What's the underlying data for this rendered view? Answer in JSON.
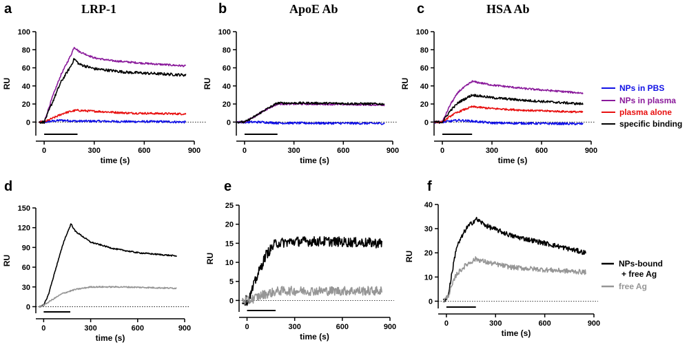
{
  "chart_data": [
    {
      "id": "a",
      "letter": "a",
      "title": "LRP-1",
      "type": "line",
      "xlabel": "time (s)",
      "ylabel": "RU",
      "xlim": [
        -50,
        900
      ],
      "ylim": [
        -15,
        100
      ],
      "xticks": [
        0,
        300,
        600,
        900
      ],
      "yticks": [
        0,
        20,
        40,
        60,
        80,
        100
      ],
      "injection": [
        0,
        200
      ],
      "series": [
        {
          "name": "NPs in PBS",
          "color": "#1010e6",
          "noise": 1.2,
          "points": [
            [
              -30,
              0
            ],
            [
              0,
              0
            ],
            [
              50,
              1
            ],
            [
              100,
              2
            ],
            [
              200,
              1
            ],
            [
              300,
              1
            ],
            [
              500,
              0.5
            ],
            [
              700,
              0.5
            ],
            [
              850,
              0
            ]
          ]
        },
        {
          "name": "NPs in plasma",
          "color": "#8a1a9b",
          "noise": 1.0,
          "points": [
            [
              -30,
              0
            ],
            [
              0,
              0
            ],
            [
              50,
              28
            ],
            [
              100,
              52
            ],
            [
              160,
              74
            ],
            [
              180,
              83
            ],
            [
              210,
              78
            ],
            [
              300,
              71
            ],
            [
              400,
              68
            ],
            [
              600,
              65
            ],
            [
              850,
              62
            ]
          ]
        },
        {
          "name": "plasma alone",
          "color": "#e81010",
          "noise": 1.1,
          "points": [
            [
              -30,
              0
            ],
            [
              0,
              0
            ],
            [
              60,
              5
            ],
            [
              120,
              10
            ],
            [
              190,
              13
            ],
            [
              300,
              12
            ],
            [
              500,
              10
            ],
            [
              850,
              9
            ]
          ]
        },
        {
          "name": "specific binding",
          "color": "#000000",
          "noise": 1.5,
          "points": [
            [
              -30,
              0
            ],
            [
              0,
              0
            ],
            [
              50,
              22
            ],
            [
              100,
              44
            ],
            [
              160,
              62
            ],
            [
              180,
              70
            ],
            [
              210,
              64
            ],
            [
              300,
              59
            ],
            [
              500,
              55
            ],
            [
              850,
              52
            ]
          ]
        }
      ]
    },
    {
      "id": "b",
      "letter": "b",
      "title": "ApoE Ab",
      "type": "line",
      "xlabel": "time (s)",
      "ylabel": "RU",
      "xlim": [
        -50,
        900
      ],
      "ylim": [
        -15,
        100
      ],
      "xticks": [
        0,
        300,
        600,
        900
      ],
      "yticks": [
        0,
        20,
        40,
        60,
        80,
        100
      ],
      "injection": [
        0,
        200
      ],
      "series": [
        {
          "name": "NPs in PBS",
          "color": "#1010e6",
          "noise": 1.2,
          "points": [
            [
              -50,
              0
            ],
            [
              0,
              0
            ],
            [
              100,
              0
            ],
            [
              200,
              -1
            ],
            [
              850,
              -1.5
            ]
          ]
        },
        {
          "name": "NPs in plasma",
          "color": "#8a1a9b",
          "noise": 1.0,
          "points": [
            [
              -50,
              0
            ],
            [
              0,
              0
            ],
            [
              60,
              6
            ],
            [
              120,
              13
            ],
            [
              200,
              20
            ],
            [
              400,
              20
            ],
            [
              850,
              19
            ]
          ]
        },
        {
          "name": "specific binding",
          "color": "#000000",
          "noise": 1.2,
          "points": [
            [
              -50,
              0
            ],
            [
              0,
              0
            ],
            [
              60,
              6
            ],
            [
              120,
              13
            ],
            [
              200,
              21
            ],
            [
              400,
              21
            ],
            [
              850,
              20
            ]
          ]
        }
      ]
    },
    {
      "id": "c",
      "letter": "c",
      "title": "HSA Ab",
      "type": "line",
      "xlabel": "time (s)",
      "ylabel": "RU",
      "xlim": [
        -50,
        900
      ],
      "ylim": [
        -15,
        100
      ],
      "xticks": [
        0,
        300,
        600,
        900
      ],
      "yticks": [
        0,
        20,
        40,
        60,
        80,
        100
      ],
      "injection": [
        0,
        180
      ],
      "series": [
        {
          "name": "NPs in PBS",
          "color": "#1010e6",
          "noise": 1.2,
          "points": [
            [
              -50,
              0
            ],
            [
              0,
              0
            ],
            [
              100,
              2
            ],
            [
              180,
              1
            ],
            [
              300,
              -1
            ],
            [
              850,
              -2
            ]
          ]
        },
        {
          "name": "NPs in plasma",
          "color": "#8a1a9b",
          "noise": 1.0,
          "points": [
            [
              -50,
              0
            ],
            [
              0,
              0
            ],
            [
              50,
              20
            ],
            [
              100,
              34
            ],
            [
              180,
              45
            ],
            [
              300,
              41
            ],
            [
              500,
              37
            ],
            [
              850,
              32
            ]
          ]
        },
        {
          "name": "plasma alone",
          "color": "#e81010",
          "noise": 1.0,
          "points": [
            [
              -50,
              0
            ],
            [
              0,
              0
            ],
            [
              60,
              8
            ],
            [
              120,
              13
            ],
            [
              180,
              17
            ],
            [
              300,
              15
            ],
            [
              500,
              13
            ],
            [
              850,
              11
            ]
          ]
        },
        {
          "name": "specific binding",
          "color": "#000000",
          "noise": 1.3,
          "points": [
            [
              -50,
              0
            ],
            [
              0,
              0
            ],
            [
              50,
              13
            ],
            [
              100,
              22
            ],
            [
              180,
              30
            ],
            [
              300,
              27
            ],
            [
              500,
              24
            ],
            [
              850,
              20
            ]
          ]
        }
      ],
      "legend": [
        "NPs in PBS",
        "NPs in plasma",
        "plasma alone",
        "specific binding"
      ]
    },
    {
      "id": "d",
      "letter": "d",
      "title": "",
      "type": "line",
      "xlabel": "time (s)",
      "ylabel": "RU",
      "xlim": [
        -50,
        900
      ],
      "ylim": [
        -10,
        150
      ],
      "xticks": [
        0,
        300,
        600,
        900
      ],
      "yticks": [
        0,
        30,
        60,
        90,
        120,
        150
      ],
      "injection": [
        0,
        170
      ],
      "series": [
        {
          "name": "NPs-bound + free Ag",
          "color": "#000000",
          "noise": 1.0,
          "points": [
            [
              -30,
              0
            ],
            [
              0,
              2
            ],
            [
              30,
              18
            ],
            [
              80,
              60
            ],
            [
              130,
              100
            ],
            [
              175,
              126
            ],
            [
              200,
              115
            ],
            [
              300,
              98
            ],
            [
              450,
              88
            ],
            [
              600,
              82
            ],
            [
              850,
              77
            ]
          ]
        },
        {
          "name": "free Ag",
          "color": "#969696",
          "noise": 1.0,
          "points": [
            [
              -30,
              0
            ],
            [
              0,
              2
            ],
            [
              50,
              10
            ],
            [
              120,
              20
            ],
            [
              200,
              26
            ],
            [
              300,
              30
            ],
            [
              500,
              30
            ],
            [
              850,
              28
            ]
          ]
        }
      ]
    },
    {
      "id": "e",
      "letter": "e",
      "title": "",
      "type": "line",
      "xlabel": "time (s)",
      "ylabel": "RU",
      "xlim": [
        -50,
        900
      ],
      "ylim": [
        -3,
        25
      ],
      "xticks": [
        0,
        300,
        600,
        900
      ],
      "yticks": [
        0,
        5,
        10,
        15,
        20,
        25
      ],
      "injection": [
        0,
        180
      ],
      "series": [
        {
          "name": "NPs-bound + free Ag",
          "color": "#000000",
          "noise": 1.3,
          "points": [
            [
              -30,
              0
            ],
            [
              10,
              0
            ],
            [
              60,
              6
            ],
            [
              120,
              12
            ],
            [
              180,
              15
            ],
            [
              300,
              15.5
            ],
            [
              500,
              15.5
            ],
            [
              850,
              15
            ]
          ]
        },
        {
          "name": "free Ag",
          "color": "#969696",
          "noise": 1.2,
          "points": [
            [
              -30,
              0
            ],
            [
              10,
              0
            ],
            [
              100,
              1.5
            ],
            [
              200,
              2.5
            ],
            [
              400,
              2.5
            ],
            [
              850,
              2.5
            ]
          ]
        }
      ]
    },
    {
      "id": "f",
      "letter": "f",
      "title": "",
      "type": "line",
      "xlabel": "time (s)",
      "ylabel": "RU",
      "xlim": [
        -50,
        900
      ],
      "ylim": [
        -3,
        40
      ],
      "xticks": [
        0,
        300,
        600,
        900
      ],
      "yticks": [
        0,
        10,
        20,
        30,
        40
      ],
      "injection": [
        0,
        180
      ],
      "series": [
        {
          "name": "NPs-bound + free Ag",
          "color": "#000000",
          "noise": 1.0,
          "points": [
            [
              -20,
              0
            ],
            [
              10,
              2
            ],
            [
              60,
              22
            ],
            [
              120,
              30
            ],
            [
              180,
              34
            ],
            [
              250,
              31
            ],
            [
              400,
              27
            ],
            [
              600,
              24
            ],
            [
              850,
              20
            ]
          ]
        },
        {
          "name": "free Ag",
          "color": "#969696",
          "noise": 1.0,
          "points": [
            [
              -20,
              0
            ],
            [
              10,
              2
            ],
            [
              60,
              11
            ],
            [
              120,
              15
            ],
            [
              180,
              17.5
            ],
            [
              250,
              16
            ],
            [
              400,
              14
            ],
            [
              600,
              13
            ],
            [
              850,
              12
            ]
          ]
        }
      ],
      "legend": [
        "NPs-bound + free Ag",
        "free Ag"
      ]
    }
  ],
  "legend_top": [
    {
      "label": "NPs in PBS",
      "color": "#1010e6"
    },
    {
      "label": "NPs in plasma",
      "color": "#8a1a9b"
    },
    {
      "label": "plasma alone",
      "color": "#e81010"
    },
    {
      "label": "specific binding",
      "color": "#000000"
    }
  ],
  "legend_bottom": [
    {
      "label_line1": "NPs-bound",
      "label_line2": "+ free Ag",
      "color": "#000000"
    },
    {
      "label": "free Ag",
      "color": "#969696"
    }
  ]
}
